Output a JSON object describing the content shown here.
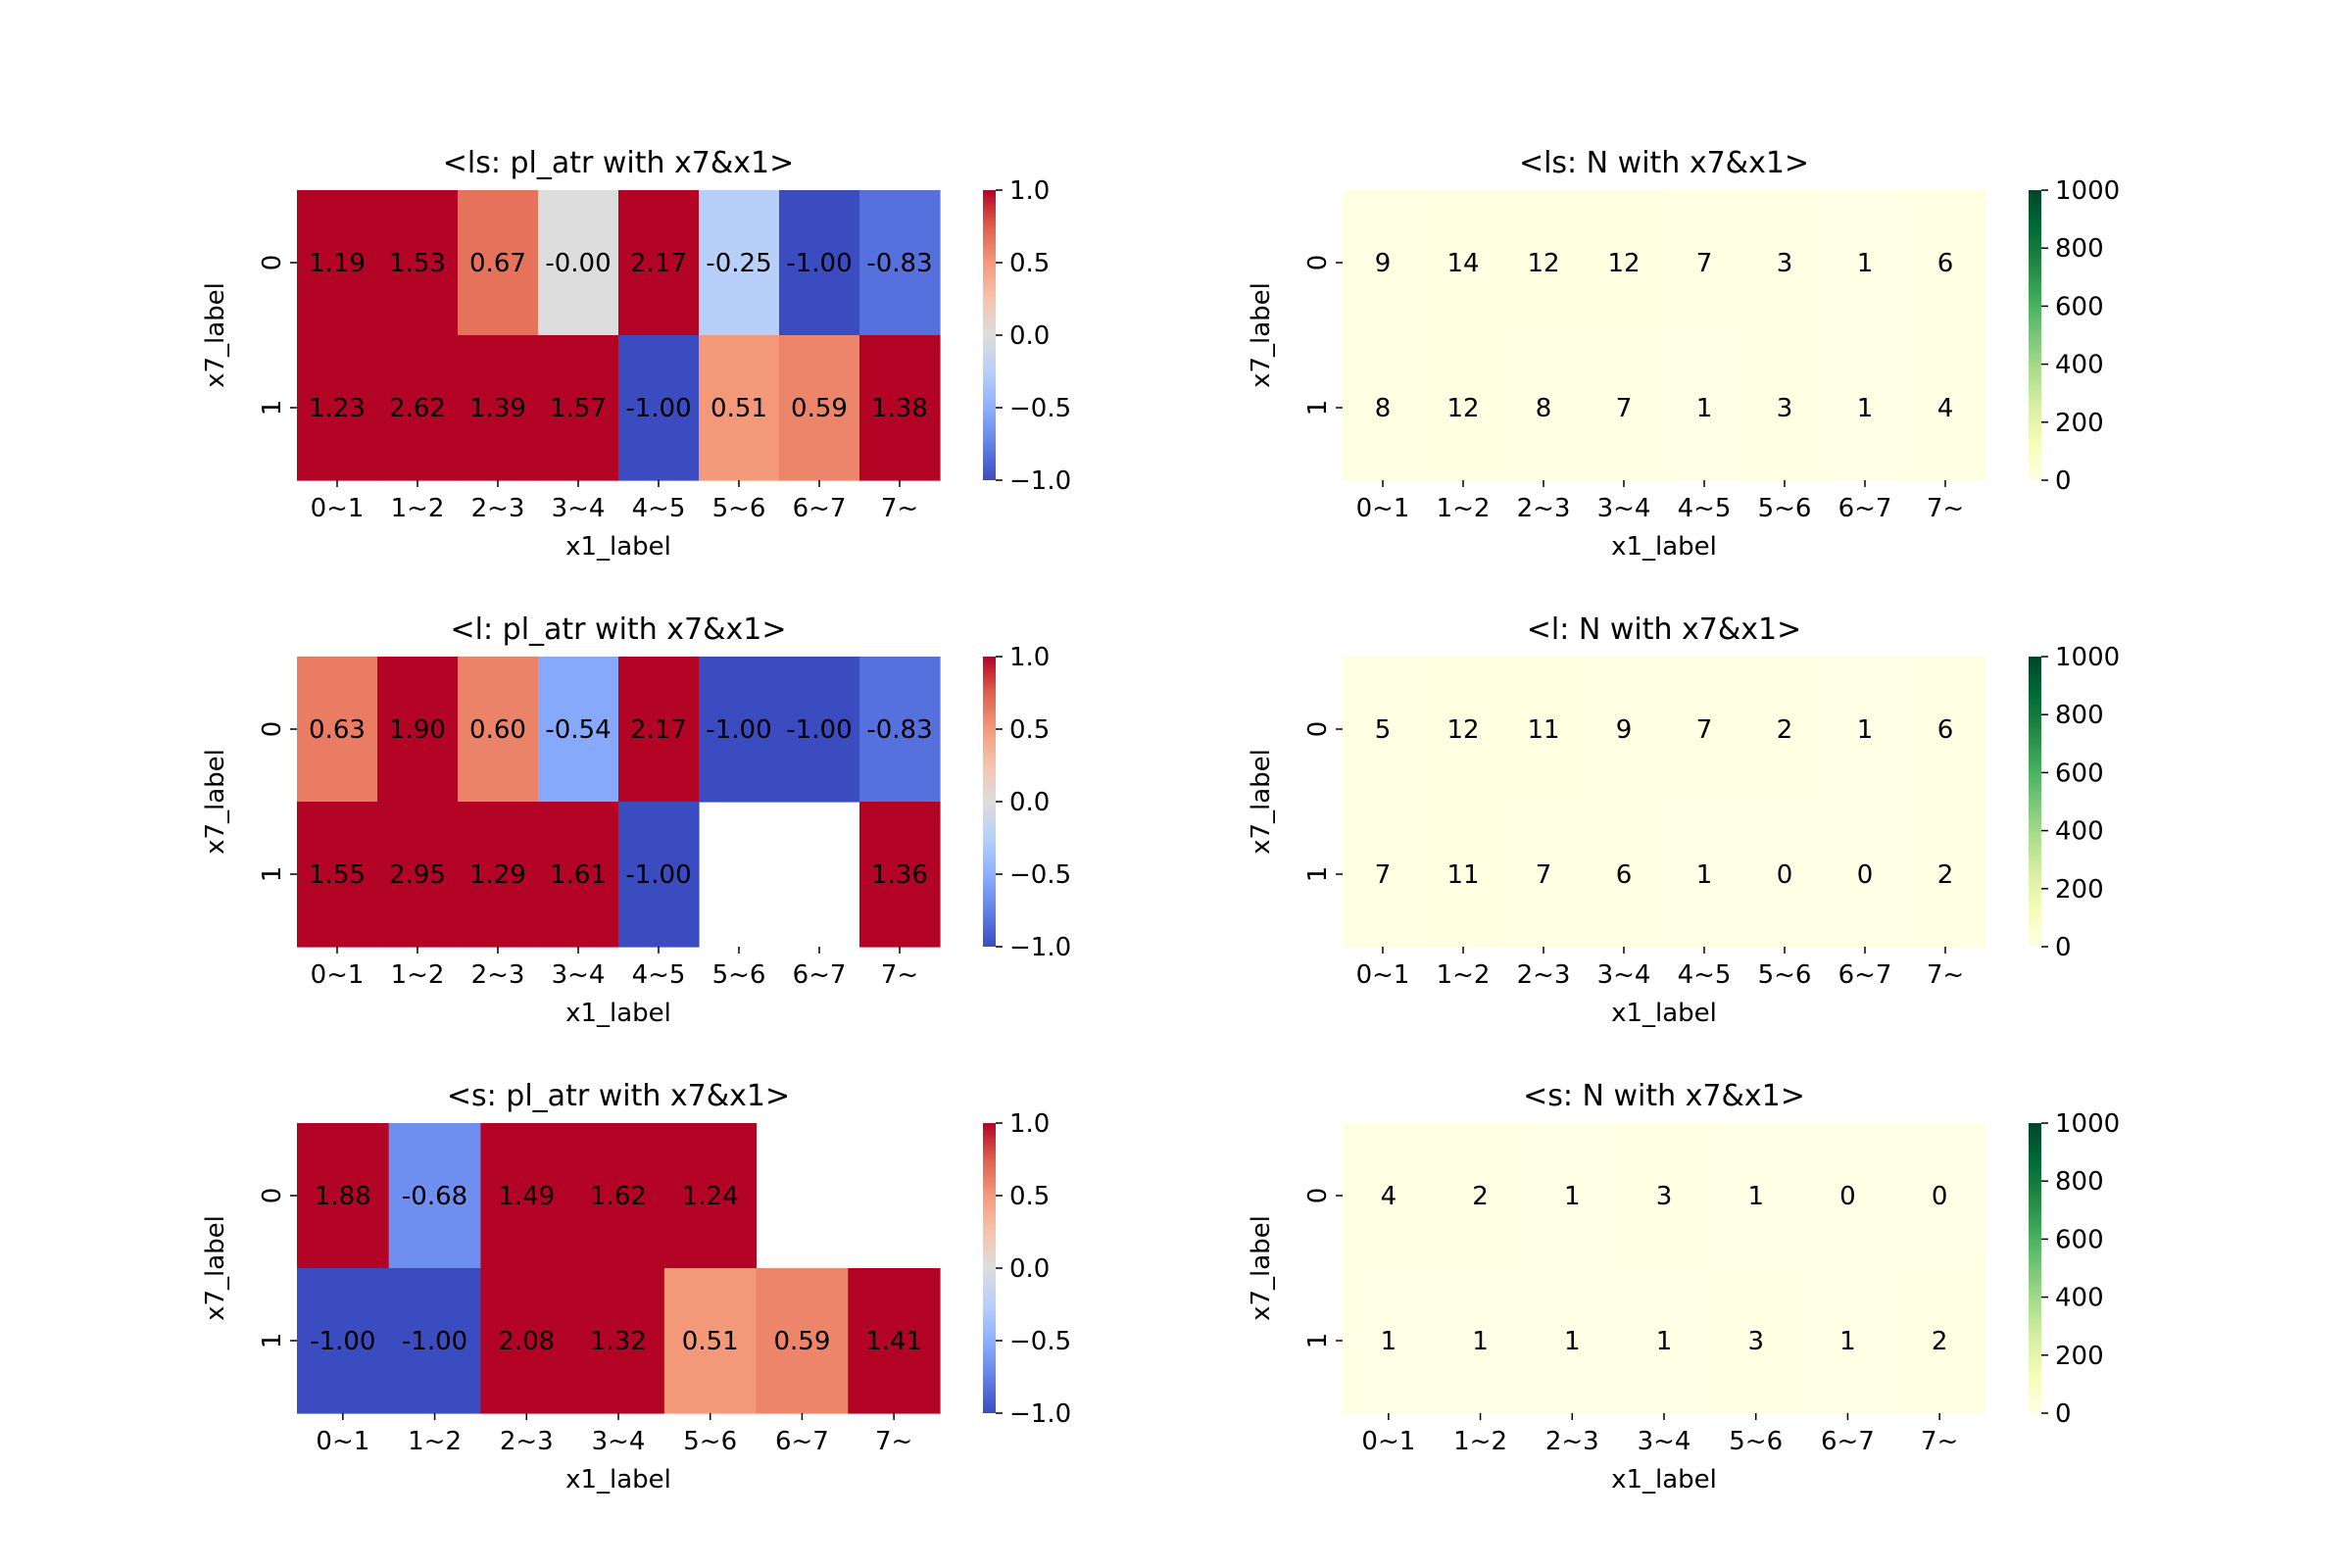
{
  "figure": {
    "rows": 3,
    "cols": 2
  },
  "chart_data": [
    {
      "type": "heatmap",
      "title": "<ls: pl_atr with x7&x1>",
      "xlabel": "x1_label",
      "ylabel": "x7_label",
      "x": [
        "0~1",
        "1~2",
        "2~3",
        "3~4",
        "4~5",
        "5~6",
        "6~7",
        "7~"
      ],
      "y": [
        "0",
        "1"
      ],
      "values": [
        [
          1.19,
          1.53,
          0.67,
          -0.0,
          2.17,
          -0.25,
          -1.0,
          -0.83
        ],
        [
          1.23,
          2.62,
          1.39,
          1.57,
          -1.0,
          0.51,
          0.59,
          1.38
        ]
      ],
      "labels": [
        [
          "1.19",
          "1.53",
          "0.67",
          "-0.00",
          "2.17",
          "-0.25",
          "-1.00",
          "-0.83"
        ],
        [
          "1.23",
          "2.62",
          "1.39",
          "1.57",
          "-1.00",
          "0.51",
          "0.59",
          "1.38"
        ]
      ],
      "colormap": "coolwarm",
      "vmin": -1.0,
      "vmax": 1.0,
      "colorbar_ticks": [
        "1.0",
        "0.5",
        "0.0",
        "−0.5",
        "−1.0"
      ]
    },
    {
      "type": "heatmap",
      "title": "<ls: N with x7&x1>",
      "xlabel": "x1_label",
      "ylabel": "x7_label",
      "x": [
        "0~1",
        "1~2",
        "2~3",
        "3~4",
        "4~5",
        "5~6",
        "6~7",
        "7~"
      ],
      "y": [
        "0",
        "1"
      ],
      "values": [
        [
          9,
          14,
          12,
          12,
          7,
          3,
          1,
          6
        ],
        [
          8,
          12,
          8,
          7,
          1,
          3,
          1,
          4
        ]
      ],
      "labels": [
        [
          "9",
          "14",
          "12",
          "12",
          "7",
          "3",
          "1",
          "6"
        ],
        [
          "8",
          "12",
          "8",
          "7",
          "1",
          "3",
          "1",
          "4"
        ]
      ],
      "colormap": "YlGn",
      "vmin": 0,
      "vmax": 1000,
      "colorbar_ticks": [
        "1000",
        "800",
        "600",
        "400",
        "200",
        "0"
      ]
    },
    {
      "type": "heatmap",
      "title": "<l: pl_atr with x7&x1>",
      "xlabel": "x1_label",
      "ylabel": "x7_label",
      "x": [
        "0~1",
        "1~2",
        "2~3",
        "3~4",
        "4~5",
        "5~6",
        "6~7",
        "7~"
      ],
      "y": [
        "0",
        "1"
      ],
      "values": [
        [
          0.63,
          1.9,
          0.6,
          -0.54,
          2.17,
          -1.0,
          -1.0,
          -0.83
        ],
        [
          1.55,
          2.95,
          1.29,
          1.61,
          -1.0,
          null,
          null,
          1.36
        ]
      ],
      "labels": [
        [
          "0.63",
          "1.90",
          "0.60",
          "-0.54",
          "2.17",
          "-1.00",
          "-1.00",
          "-0.83"
        ],
        [
          "1.55",
          "2.95",
          "1.29",
          "1.61",
          "-1.00",
          "",
          "",
          "1.36"
        ]
      ],
      "colormap": "coolwarm",
      "vmin": -1.0,
      "vmax": 1.0,
      "colorbar_ticks": [
        "1.0",
        "0.5",
        "0.0",
        "−0.5",
        "−1.0"
      ]
    },
    {
      "type": "heatmap",
      "title": "<l: N with x7&x1>",
      "xlabel": "x1_label",
      "ylabel": "x7_label",
      "x": [
        "0~1",
        "1~2",
        "2~3",
        "3~4",
        "4~5",
        "5~6",
        "6~7",
        "7~"
      ],
      "y": [
        "0",
        "1"
      ],
      "values": [
        [
          5,
          12,
          11,
          9,
          7,
          2,
          1,
          6
        ],
        [
          7,
          11,
          7,
          6,
          1,
          0,
          0,
          2
        ]
      ],
      "labels": [
        [
          "5",
          "12",
          "11",
          "9",
          "7",
          "2",
          "1",
          "6"
        ],
        [
          "7",
          "11",
          "7",
          "6",
          "1",
          "0",
          "0",
          "2"
        ]
      ],
      "colormap": "YlGn",
      "vmin": 0,
      "vmax": 1000,
      "colorbar_ticks": [
        "1000",
        "800",
        "600",
        "400",
        "200",
        "0"
      ]
    },
    {
      "type": "heatmap",
      "title": "<s: pl_atr with x7&x1>",
      "xlabel": "x1_label",
      "ylabel": "x7_label",
      "x": [
        "0~1",
        "1~2",
        "2~3",
        "3~4",
        "5~6",
        "6~7",
        "7~"
      ],
      "y": [
        "0",
        "1"
      ],
      "values": [
        [
          1.88,
          -0.68,
          1.49,
          1.62,
          1.24,
          null,
          null
        ],
        [
          -1.0,
          -1.0,
          2.08,
          1.32,
          0.51,
          0.59,
          1.41
        ]
      ],
      "labels": [
        [
          "1.88",
          "-0.68",
          "1.49",
          "1.62",
          "1.24",
          "",
          ""
        ],
        [
          "-1.00",
          "-1.00",
          "2.08",
          "1.32",
          "0.51",
          "0.59",
          "1.41"
        ]
      ],
      "colormap": "coolwarm",
      "vmin": -1.0,
      "vmax": 1.0,
      "colorbar_ticks": [
        "1.0",
        "0.5",
        "0.0",
        "−0.5",
        "−1.0"
      ]
    },
    {
      "type": "heatmap",
      "title": "<s: N with x7&x1>",
      "xlabel": "x1_label",
      "ylabel": "x7_label",
      "x": [
        "0~1",
        "1~2",
        "2~3",
        "3~4",
        "5~6",
        "6~7",
        "7~"
      ],
      "y": [
        "0",
        "1"
      ],
      "values": [
        [
          4,
          2,
          1,
          3,
          1,
          0,
          0
        ],
        [
          1,
          1,
          1,
          1,
          3,
          1,
          2
        ]
      ],
      "labels": [
        [
          "4",
          "2",
          "1",
          "3",
          "1",
          "0",
          "0"
        ],
        [
          "1",
          "1",
          "1",
          "1",
          "3",
          "1",
          "2"
        ]
      ],
      "colormap": "YlGn",
      "vmin": 0,
      "vmax": 1000,
      "colorbar_ticks": [
        "1000",
        "800",
        "600",
        "400",
        "200",
        "0"
      ]
    }
  ]
}
